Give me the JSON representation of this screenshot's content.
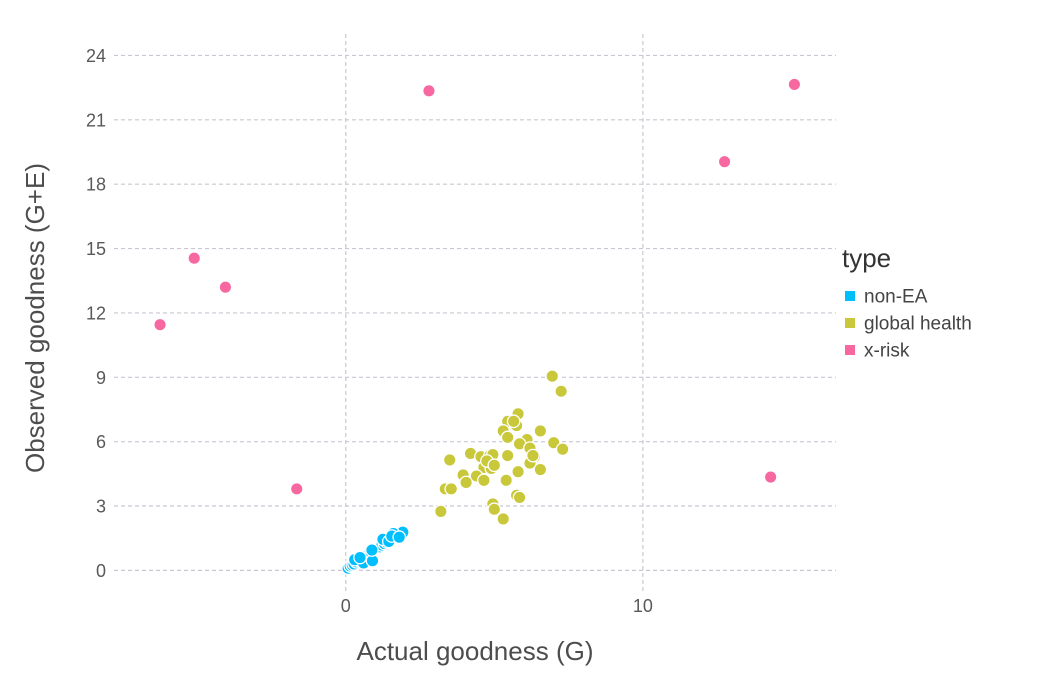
{
  "chart_data": {
    "type": "scatter",
    "title": "",
    "xlabel": "Actual goodness (G)",
    "ylabel": "Observed goodness (G+E)",
    "xlim": [
      -7.8,
      16.5
    ],
    "ylim": [
      -1.1,
      25
    ],
    "xticks": [
      0,
      10
    ],
    "yticks": [
      0,
      3,
      6,
      9,
      12,
      15,
      18,
      21,
      24
    ],
    "grid": true,
    "legend": {
      "title": "type",
      "position": "right"
    },
    "series": [
      {
        "name": "non-EA",
        "color": "#00BFFF",
        "points": [
          [
            0.08,
            0.1
          ],
          [
            0.15,
            0.2
          ],
          [
            0.22,
            0.25
          ],
          [
            0.28,
            0.3
          ],
          [
            0.35,
            0.4
          ],
          [
            0.42,
            0.48
          ],
          [
            0.5,
            0.55
          ],
          [
            0.55,
            0.62
          ],
          [
            0.62,
            0.65
          ],
          [
            0.7,
            0.72
          ],
          [
            0.78,
            0.78
          ],
          [
            0.85,
            0.85
          ],
          [
            0.92,
            0.92
          ],
          [
            1.0,
            1.0
          ],
          [
            1.08,
            1.05
          ],
          [
            1.15,
            1.1
          ],
          [
            1.22,
            1.18
          ],
          [
            1.3,
            1.25
          ],
          [
            1.38,
            1.32
          ],
          [
            1.45,
            1.4
          ],
          [
            1.52,
            1.45
          ],
          [
            1.6,
            1.5
          ],
          [
            1.68,
            1.55
          ],
          [
            1.75,
            1.62
          ],
          [
            1.85,
            1.7
          ],
          [
            1.92,
            1.78
          ],
          [
            0.3,
            0.5
          ],
          [
            0.6,
            0.35
          ],
          [
            0.9,
            0.45
          ],
          [
            1.25,
            1.45
          ],
          [
            1.6,
            1.72
          ],
          [
            0.48,
            0.6
          ],
          [
            0.88,
            0.95
          ],
          [
            1.45,
            1.35
          ],
          [
            1.55,
            1.6
          ],
          [
            1.8,
            1.55
          ]
        ]
      },
      {
        "name": "global health",
        "color": "#C8C83A",
        "points": [
          [
            6.95,
            9.05
          ],
          [
            7.25,
            8.35
          ],
          [
            5.8,
            7.3
          ],
          [
            5.45,
            6.95
          ],
          [
            5.75,
            6.75
          ],
          [
            5.3,
            6.5
          ],
          [
            6.55,
            6.5
          ],
          [
            5.45,
            6.2
          ],
          [
            6.1,
            6.1
          ],
          [
            5.85,
            5.9
          ],
          [
            7.0,
            5.95
          ],
          [
            7.3,
            5.65
          ],
          [
            6.2,
            5.7
          ],
          [
            3.5,
            5.15
          ],
          [
            4.2,
            5.45
          ],
          [
            4.55,
            5.3
          ],
          [
            4.85,
            5.35
          ],
          [
            4.95,
            5.4
          ],
          [
            5.45,
            5.35
          ],
          [
            6.35,
            5.3
          ],
          [
            6.2,
            5.0
          ],
          [
            5.8,
            4.6
          ],
          [
            6.55,
            4.7
          ],
          [
            4.65,
            4.8
          ],
          [
            4.9,
            4.75
          ],
          [
            3.95,
            4.45
          ],
          [
            4.4,
            4.4
          ],
          [
            4.65,
            4.2
          ],
          [
            5.4,
            4.2
          ],
          [
            4.05,
            4.1
          ],
          [
            3.35,
            3.8
          ],
          [
            3.55,
            3.8
          ],
          [
            5.75,
            3.5
          ],
          [
            5.85,
            3.4
          ],
          [
            4.95,
            3.1
          ],
          [
            5.0,
            2.85
          ],
          [
            3.2,
            2.75
          ],
          [
            5.3,
            2.4
          ],
          [
            4.75,
            5.1
          ],
          [
            5.65,
            6.95
          ],
          [
            6.3,
            5.35
          ],
          [
            5.0,
            4.9
          ]
        ]
      },
      {
        "name": "x-risk",
        "color": "#F768A1",
        "points": [
          [
            2.8,
            22.35
          ],
          [
            15.1,
            22.65
          ],
          [
            12.75,
            19.05
          ],
          [
            -5.1,
            14.55
          ],
          [
            -4.05,
            13.2
          ],
          [
            -6.25,
            11.45
          ],
          [
            -1.65,
            3.8
          ],
          [
            14.3,
            4.35
          ]
        ]
      }
    ]
  }
}
